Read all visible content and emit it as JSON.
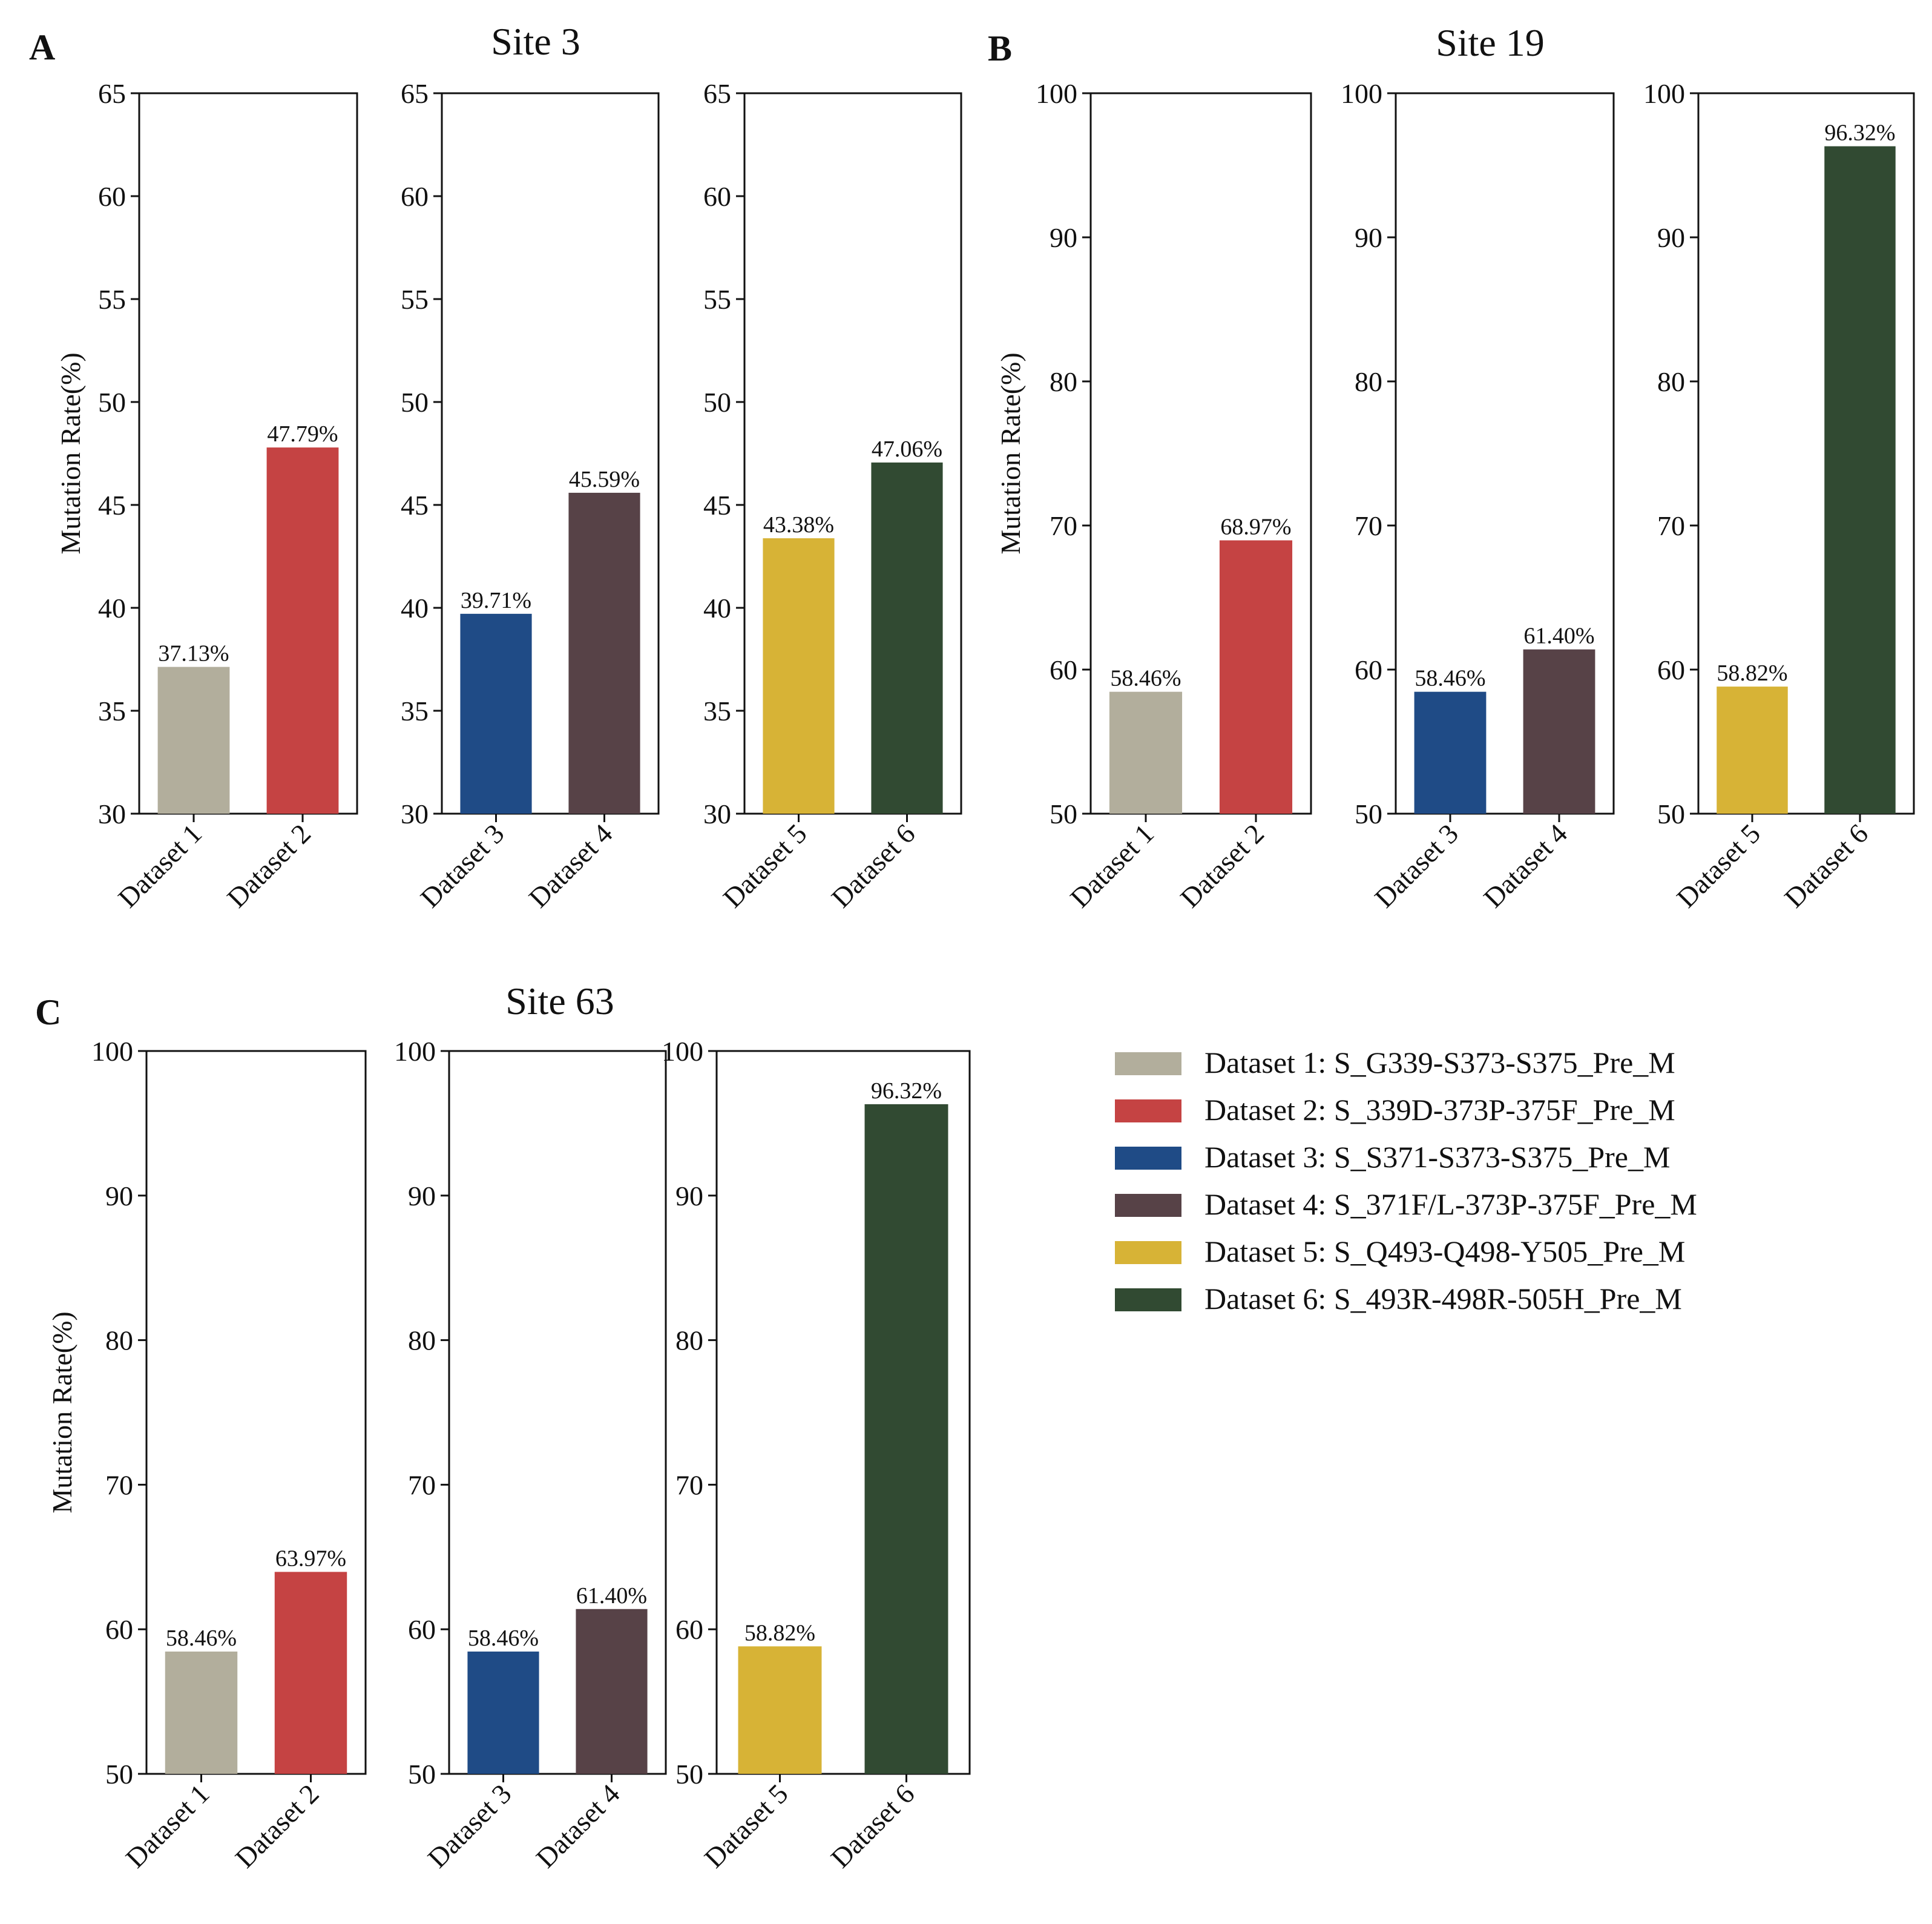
{
  "colors": {
    "Dataset 1": "#b2ae9c",
    "Dataset 2": "#c54343",
    "Dataset 3": "#1f4b86",
    "Dataset 4": "#574247",
    "Dataset 5": "#d7b336",
    "Dataset 6": "#314a32"
  },
  "chart_data": [
    {
      "panel": "A",
      "title": "Site 3",
      "type": "bar",
      "ylabel": "Mutation Rate(%)",
      "ylim": [
        30,
        65
      ],
      "yticks": [
        30,
        35,
        40,
        45,
        50,
        55,
        60,
        65
      ],
      "subplots": [
        {
          "categories": [
            "Dataset 1",
            "Dataset 2"
          ],
          "values": [
            37.13,
            47.79
          ],
          "labels": [
            "37.13%",
            "47.79%"
          ]
        },
        {
          "categories": [
            "Dataset 3",
            "Dataset 4"
          ],
          "values": [
            39.71,
            45.59
          ],
          "labels": [
            "39.71%",
            "45.59%"
          ]
        },
        {
          "categories": [
            "Dataset 5",
            "Dataset 6"
          ],
          "values": [
            43.38,
            47.06
          ],
          "labels": [
            "43.38%",
            "47.06%"
          ]
        }
      ]
    },
    {
      "panel": "B",
      "title": "Site 19",
      "type": "bar",
      "ylabel": "Mutation Rate(%)",
      "ylim": [
        50,
        100
      ],
      "yticks": [
        50,
        60,
        70,
        80,
        90,
        100
      ],
      "subplots": [
        {
          "categories": [
            "Dataset 1",
            "Dataset 2"
          ],
          "values": [
            58.46,
            68.97
          ],
          "labels": [
            "58.46%",
            "68.97%"
          ]
        },
        {
          "categories": [
            "Dataset 3",
            "Dataset 4"
          ],
          "values": [
            58.46,
            61.4
          ],
          "labels": [
            "58.46%",
            "61.40%"
          ]
        },
        {
          "categories": [
            "Dataset 5",
            "Dataset 6"
          ],
          "values": [
            58.82,
            96.32
          ],
          "labels": [
            "58.82%",
            "96.32%"
          ]
        }
      ]
    },
    {
      "panel": "C",
      "title": "Site 63",
      "type": "bar",
      "ylabel": "Mutation Rate(%)",
      "ylim": [
        50,
        100
      ],
      "yticks": [
        50,
        60,
        70,
        80,
        90,
        100
      ],
      "subplots": [
        {
          "categories": [
            "Dataset 1",
            "Dataset 2"
          ],
          "values": [
            58.46,
            63.97
          ],
          "labels": [
            "58.46%",
            "63.97%"
          ]
        },
        {
          "categories": [
            "Dataset 3",
            "Dataset 4"
          ],
          "values": [
            58.46,
            61.4
          ],
          "labels": [
            "58.46%",
            "61.40%"
          ]
        },
        {
          "categories": [
            "Dataset 5",
            "Dataset 6"
          ],
          "values": [
            58.82,
            96.32
          ],
          "labels": [
            "58.82%",
            "96.32%"
          ]
        }
      ]
    }
  ],
  "legend": [
    {
      "key": "Dataset 1",
      "label": "Dataset 1: S_G339-S373-S375_Pre_M"
    },
    {
      "key": "Dataset 2",
      "label": "Dataset 2: S_339D-373P-375F_Pre_M"
    },
    {
      "key": "Dataset 3",
      "label": "Dataset 3: S_S371-S373-S375_Pre_M"
    },
    {
      "key": "Dataset 4",
      "label": "Dataset 4: S_371F/L-373P-375F_Pre_M"
    },
    {
      "key": "Dataset 5",
      "label": "Dataset 5: S_Q493-Q498-Y505_Pre_M"
    },
    {
      "key": "Dataset 6",
      "label": "Dataset 6: S_493R-498R-505H_Pre_M"
    }
  ]
}
